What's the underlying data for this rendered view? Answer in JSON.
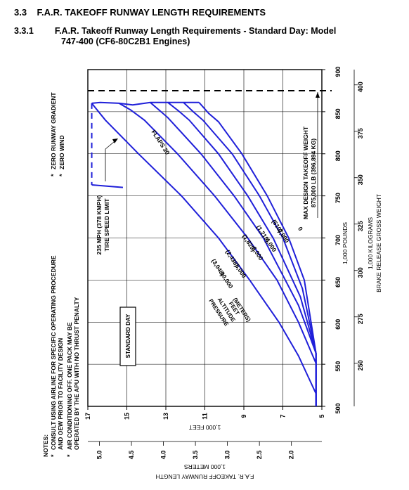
{
  "section": {
    "number": "3.3",
    "title": "F.A.R. TAKEOFF RUNWAY LENGTH REQUIREMENTS",
    "sub_number": "3.3.1",
    "sub_title_line1": "F.A.R. Takeoff Runway Length Requirements - Standard Day: Model",
    "sub_title_line2": "747-400 (CF6-80C2B1 Engines)"
  },
  "chart_data": {
    "type": "line",
    "title": "",
    "xlabel": "BRAKE RELEASE GROSS WEIGHT",
    "x_units_top": "1,000 POUNDS",
    "x_units_bottom": "1,000 KILOGRAMS",
    "x_lb_ticks": [
      "500",
      "550",
      "600",
      "650",
      "700",
      "750",
      "800",
      "850",
      "900"
    ],
    "x_kg_ticks": [
      "250",
      "275",
      "300",
      "325",
      "350",
      "375",
      "400"
    ],
    "xlim_lb": [
      500,
      900
    ],
    "ylabel": "F.A.R. TAKEOFF RUNWAY LENGTH",
    "y_units_feet": "1,000 FEET",
    "y_units_meters": "1,000 METERS",
    "y_ft_ticks": [
      "5",
      "7",
      "9",
      "11",
      "13",
      "15",
      "17"
    ],
    "y_m_ticks": [
      "2.0",
      "2.5",
      "3.0",
      "3.5",
      "4.0",
      "4.5",
      "5.0"
    ],
    "ylim_ft": [
      5,
      17
    ],
    "series": [
      {
        "name": "0",
        "meters": "",
        "x": [
          563,
          650,
          700,
          750,
          800,
          838,
          848,
          861
        ],
        "y": [
          5.3,
          5.9,
          6.7,
          7.8,
          9.1,
          10.3,
          10.8,
          11.3
        ]
      },
      {
        "name": "2,000",
        "meters": "(610)",
        "x": [
          563,
          640,
          700,
          750,
          800,
          840,
          850,
          861
        ],
        "y": [
          5.3,
          6.0,
          7.0,
          8.2,
          9.6,
          11.1,
          11.6,
          12.1
        ]
      },
      {
        "name": "4,000",
        "meters": "(1,219)",
        "x": [
          563,
          630,
          700,
          750,
          800,
          840,
          850,
          861
        ],
        "y": [
          5.3,
          6.1,
          7.5,
          8.8,
          10.3,
          11.8,
          12.3,
          12.9
        ]
      },
      {
        "name": "6,000",
        "meters": "(1,829)",
        "x": [
          563,
          620,
          700,
          750,
          800,
          843,
          853,
          861
        ],
        "y": [
          5.3,
          6.2,
          8.0,
          9.5,
          11.2,
          12.9,
          13.4,
          13.8
        ]
      },
      {
        "name": "8,000",
        "meters": "(2,438)",
        "x": [
          551,
          600,
          650,
          700,
          750,
          800,
          840,
          852,
          860
        ],
        "y": [
          5.3,
          6.2,
          7.3,
          8.8,
          10.5,
          12.4,
          14.1,
          14.8,
          15.4
        ]
      },
      {
        "name": "10,000",
        "meters": "(3,048)",
        "x": [
          515,
          560,
          600,
          650,
          700,
          750,
          800,
          840,
          860
        ],
        "y": [
          5.3,
          6.2,
          7.2,
          8.7,
          10.3,
          12.2,
          14.4,
          16.1,
          16.8
        ]
      }
    ],
    "curve_label": "FLAPS 20",
    "pressure_label": [
      "PRESSURE",
      "ALTITUDE",
      "FEET",
      "(METERS)"
    ],
    "tire_speed_limit": {
      "label_line1": "235 MPH (378 KMPH)",
      "label_line2": "TIRE SPEED LIMIT"
    },
    "max_takeoff_weight": {
      "label_line1": "MAX DESIGN TAKEOFF WEIGHT",
      "label_line2": "875,000 LB (396,894 KG)",
      "x": 875
    },
    "standard_day_label": "STANDARD DAY",
    "notes_title": "NOTES:",
    "notes": [
      "CONSULT USING AIRLINE FOR SPECIFIC OPERATING PROCEDURE",
      "AND OEW PRIOR TO FACILITY DESIGN",
      "AIR CONDITIONING OFF.  ONE PACK MAY BE",
      "OPERATED BY THE APU WITH NO THRUST PENALTY",
      "ZERO RUNWAY GRADIENT",
      "ZERO WIND"
    ],
    "grid": true,
    "orientation": "rotated 90 degrees counter-clockwise"
  },
  "colors": {
    "curve": "#1f1fd9",
    "text": "#000000",
    "grid": "#000000"
  }
}
